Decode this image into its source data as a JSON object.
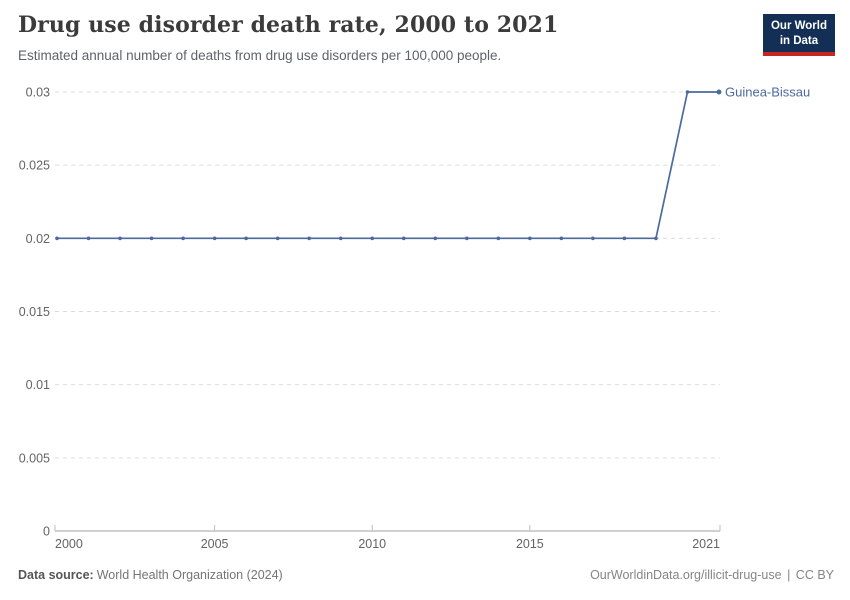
{
  "header": {
    "title": "Drug use disorder death rate, 2000 to 2021",
    "subtitle": "Estimated annual number of deaths from drug use disorders per 100,000 people."
  },
  "logo": {
    "line1": "Our World",
    "line2": "in Data",
    "bg_color": "#132F56",
    "accent_color": "#C5281F"
  },
  "chart_data": {
    "type": "line",
    "title": "Drug use disorder death rate, 2000 to 2021",
    "x": [
      2000,
      2001,
      2002,
      2003,
      2004,
      2005,
      2006,
      2007,
      2008,
      2009,
      2010,
      2011,
      2012,
      2013,
      2014,
      2015,
      2016,
      2017,
      2018,
      2019,
      2020,
      2021
    ],
    "series": [
      {
        "name": "Guinea-Bissau",
        "color": "#4C6A9C",
        "values": [
          0.02,
          0.02,
          0.02,
          0.02,
          0.02,
          0.02,
          0.02,
          0.02,
          0.02,
          0.02,
          0.02,
          0.02,
          0.02,
          0.02,
          0.02,
          0.02,
          0.02,
          0.02,
          0.02,
          0.02,
          0.03,
          0.03
        ]
      }
    ],
    "ylim": [
      0,
      0.03
    ],
    "yticks": [
      0,
      0.005,
      0.01,
      0.015,
      0.02,
      0.025,
      0.03
    ],
    "ytick_labels": [
      "0",
      "0.005",
      "0.01",
      "0.015",
      "0.02",
      "0.025",
      "0.03"
    ],
    "xticks": [
      2000,
      2005,
      2010,
      2015,
      2021
    ],
    "xtick_labels": [
      "2000",
      "2005",
      "2010",
      "2015",
      "2021"
    ],
    "grid": "horizontal-dashed",
    "legend": "end-of-line-label",
    "grid_color": "#dcdcdc",
    "axis_color": "#a1a1a1",
    "tick_text_color": "#636363"
  },
  "footer": {
    "source_label": "Data source:",
    "source_value": "World Health Organization (2024)",
    "url": "OurWorldinData.org/illicit-drug-use",
    "separator": "|",
    "license": "CC BY"
  }
}
